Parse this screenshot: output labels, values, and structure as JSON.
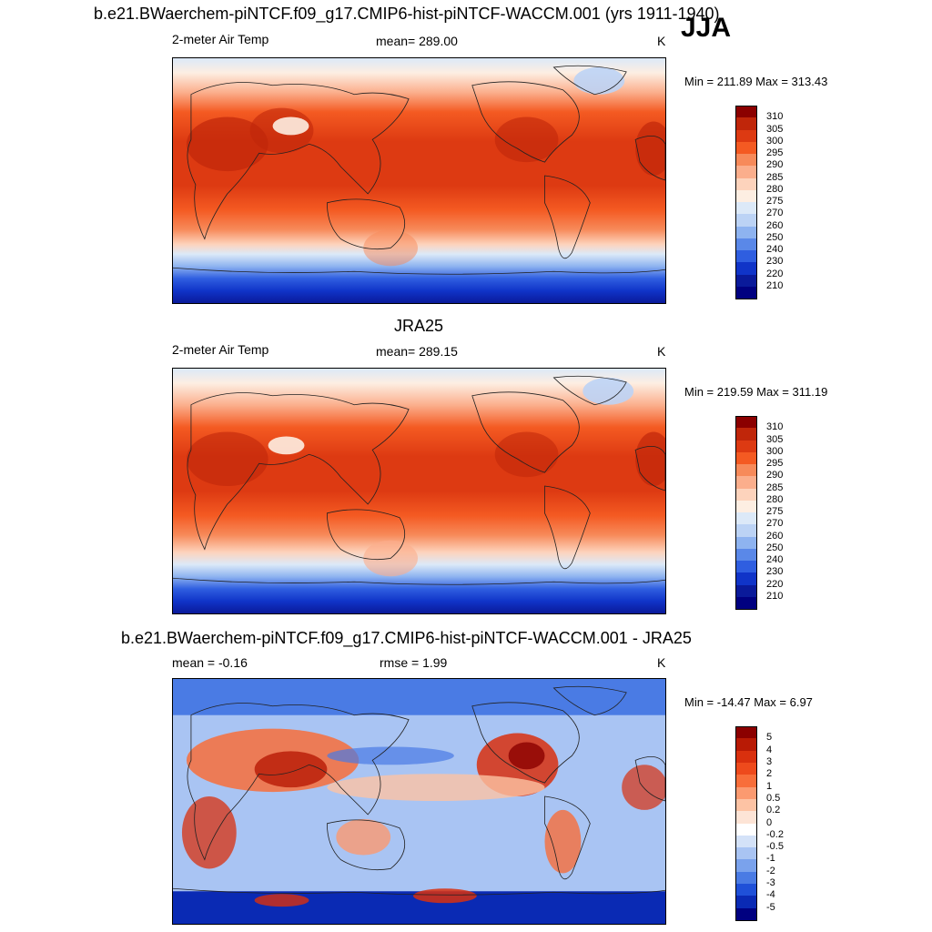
{
  "panels": [
    {
      "title": "b.e21.BWaerchem-piNTCF.f09_g17.CMIP6-hist-piNTCF-WACCM.001 (yrs 1911-1940)",
      "season": "JJA",
      "left_label": "2-meter Air Temp",
      "center_label": "mean= 289.00",
      "units": "K",
      "minmax": "Min = 211.89 Max = 313.43",
      "map_kind": "model",
      "colorbar": {
        "labels": [
          "310",
          "305",
          "300",
          "295",
          "290",
          "285",
          "280",
          "275",
          "270",
          "260",
          "250",
          "240",
          "230",
          "220",
          "210"
        ],
        "colors": [
          "#8b0000",
          "#c0260a",
          "#dd3a12",
          "#f45a22",
          "#f78a5a",
          "#fbae8c",
          "#fdd3bc",
          "#fdeee2",
          "#dce9f8",
          "#bcd3f5",
          "#8eb3f0",
          "#5a88e8",
          "#2f5ee0",
          "#1034c8",
          "#0a1a9a",
          "#000080"
        ]
      }
    },
    {
      "title": "JRA25",
      "left_label": "2-meter Air Temp",
      "center_label": "mean= 289.15",
      "units": "K",
      "minmax": "Min = 219.59 Max = 311.19",
      "map_kind": "obs",
      "colorbar": {
        "labels": [
          "310",
          "305",
          "300",
          "295",
          "290",
          "285",
          "280",
          "275",
          "270",
          "260",
          "250",
          "240",
          "230",
          "220",
          "210"
        ],
        "colors": [
          "#8b0000",
          "#c0260a",
          "#dd3a12",
          "#f45a22",
          "#f78a5a",
          "#fbae8c",
          "#fdd3bc",
          "#fdeee2",
          "#dce9f8",
          "#bcd3f5",
          "#8eb3f0",
          "#5a88e8",
          "#2f5ee0",
          "#1034c8",
          "#0a1a9a",
          "#000080"
        ]
      }
    },
    {
      "title": "b.e21.BWaerchem-piNTCF.f09_g17.CMIP6-hist-piNTCF-WACCM.001 - JRA25",
      "left_label": "mean =  -0.16",
      "center_label": "rmse =   1.99",
      "units": "K",
      "minmax": "Min = -14.47 Max =   6.97",
      "map_kind": "diff",
      "colorbar": {
        "labels": [
          "5",
          "4",
          "3",
          "2",
          "1",
          "0.5",
          "0.2",
          "0",
          "-0.2",
          "-0.5",
          "-1",
          "-2",
          "-3",
          "-4",
          "-5"
        ],
        "colors": [
          "#8b0000",
          "#b81a05",
          "#d9300e",
          "#ee4a1c",
          "#f86e3a",
          "#fb9a70",
          "#fdc3a4",
          "#fde4d6",
          "#ffffff",
          "#d4e2f8",
          "#a9c4f3",
          "#7aa2ec",
          "#4a7be4",
          "#1f50d8",
          "#0a2ab4",
          "#000080"
        ]
      }
    }
  ]
}
